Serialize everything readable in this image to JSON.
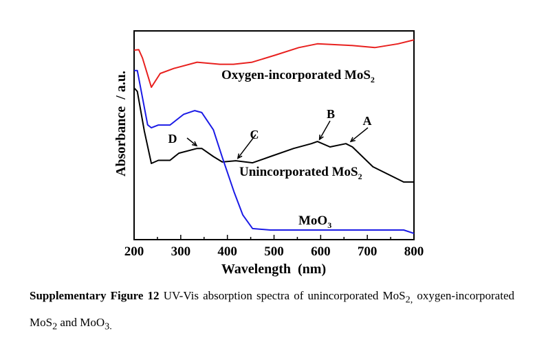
{
  "chart_data": {
    "type": "line",
    "title": "",
    "xlabel": "Wavelength  (nm)",
    "ylabel": "Absorbance  / a.u.",
    "xlim": [
      200,
      800
    ],
    "ylim": [
      0,
      100
    ],
    "xticks": [
      200,
      300,
      400,
      500,
      600,
      700,
      800
    ],
    "yticks": [],
    "grid": false,
    "legend": "none (curves labeled inline)",
    "series": [
      {
        "name": "Oxygen-incorporated MoS2",
        "label": "Oxygen-incorporated MoS",
        "sub": "2",
        "color": "#e8201e",
        "x": [
          200,
          210,
          218,
          237,
          256,
          285,
          335,
          384,
          413,
          453,
          504,
          553,
          593,
          667,
          716,
          766,
          800
        ],
        "y": [
          90.8,
          91,
          87,
          73,
          79.6,
          82,
          85,
          84,
          84,
          85,
          88.5,
          92,
          93.8,
          93,
          92,
          93.8,
          95.7
        ]
      },
      {
        "name": "Unincorporated MoS2",
        "label": "Unincorporated MoS",
        "sub": "2",
        "color": "#000000",
        "x": [
          200,
          207,
          222,
          237,
          252,
          277,
          296,
          335,
          345,
          370,
          389,
          418,
          454,
          492,
          542,
          580,
          593,
          620,
          654,
          668,
          712,
          778,
          800
        ],
        "y": [
          72.7,
          71,
          52,
          36.5,
          38,
          38,
          41.4,
          43.7,
          43.7,
          39.8,
          37.2,
          37.8,
          36.8,
          39.8,
          43.7,
          46,
          47,
          44.4,
          46,
          44.4,
          34.9,
          27.6,
          27.6
        ]
      },
      {
        "name": "MoO3",
        "label": "MoO",
        "sub": "3",
        "color": "#1a1ae6",
        "x": [
          200,
          207,
          229,
          237,
          252,
          277,
          306,
          330,
          345,
          370,
          389,
          414,
          433,
          454,
          492,
          640,
          778,
          800
        ],
        "y": [
          81,
          81,
          55,
          53.6,
          54.9,
          54.9,
          60,
          61.8,
          60.9,
          52.6,
          39.5,
          23,
          11.8,
          5.3,
          4.6,
          4.6,
          4.6,
          3
        ]
      }
    ],
    "annotations": [
      {
        "text": "A",
        "x": 660,
        "y": 46
      },
      {
        "text": "B",
        "x": 593,
        "y": 47
      },
      {
        "text": "C",
        "x": 418,
        "y": 38
      },
      {
        "text": "D",
        "x": 340,
        "y": 44
      }
    ]
  },
  "caption": {
    "label": "Supplementary Figure 12",
    "text_1": " UV-Vis absorption spectra of unincorporated MoS",
    "sub_1": "2,",
    "text_2": " oxygen-incorporated MoS",
    "sub_2": "2",
    "text_3": " and MoO",
    "sub_3": "3."
  }
}
